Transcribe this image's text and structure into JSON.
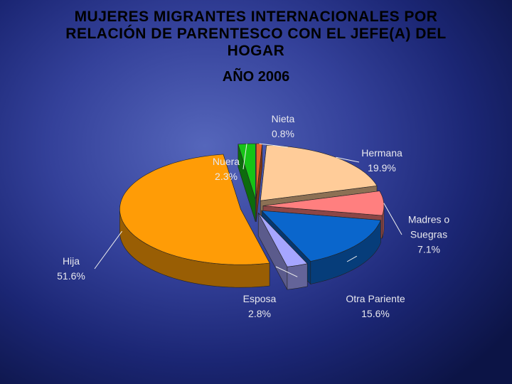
{
  "chart_data": {
    "type": "pie3d",
    "title": "MUJERES MIGRANTES INTERNACIONALES POR RELACIÓN DE PARENTESCO CON EL JEFE(A) DEL HOGAR",
    "subtitle": "AÑO 2006",
    "categories": [
      "Nieta",
      "Hermana",
      "Madres o Suegras",
      "Otra Pariente",
      "Esposa",
      "Hija",
      "Nuera"
    ],
    "values": [
      0.8,
      19.9,
      7.1,
      15.6,
      2.8,
      51.6,
      2.3
    ],
    "value_labels": [
      "0.8%",
      "19.9%",
      "7.1%",
      "15.6%",
      "2.8%",
      "51.6%",
      "2.3%"
    ],
    "colors": [
      "#e8642a",
      "#ffcc99",
      "#ff7f7f",
      "#0a66cc",
      "#a6a6ff",
      "#ff9c06",
      "#17c317"
    ]
  }
}
